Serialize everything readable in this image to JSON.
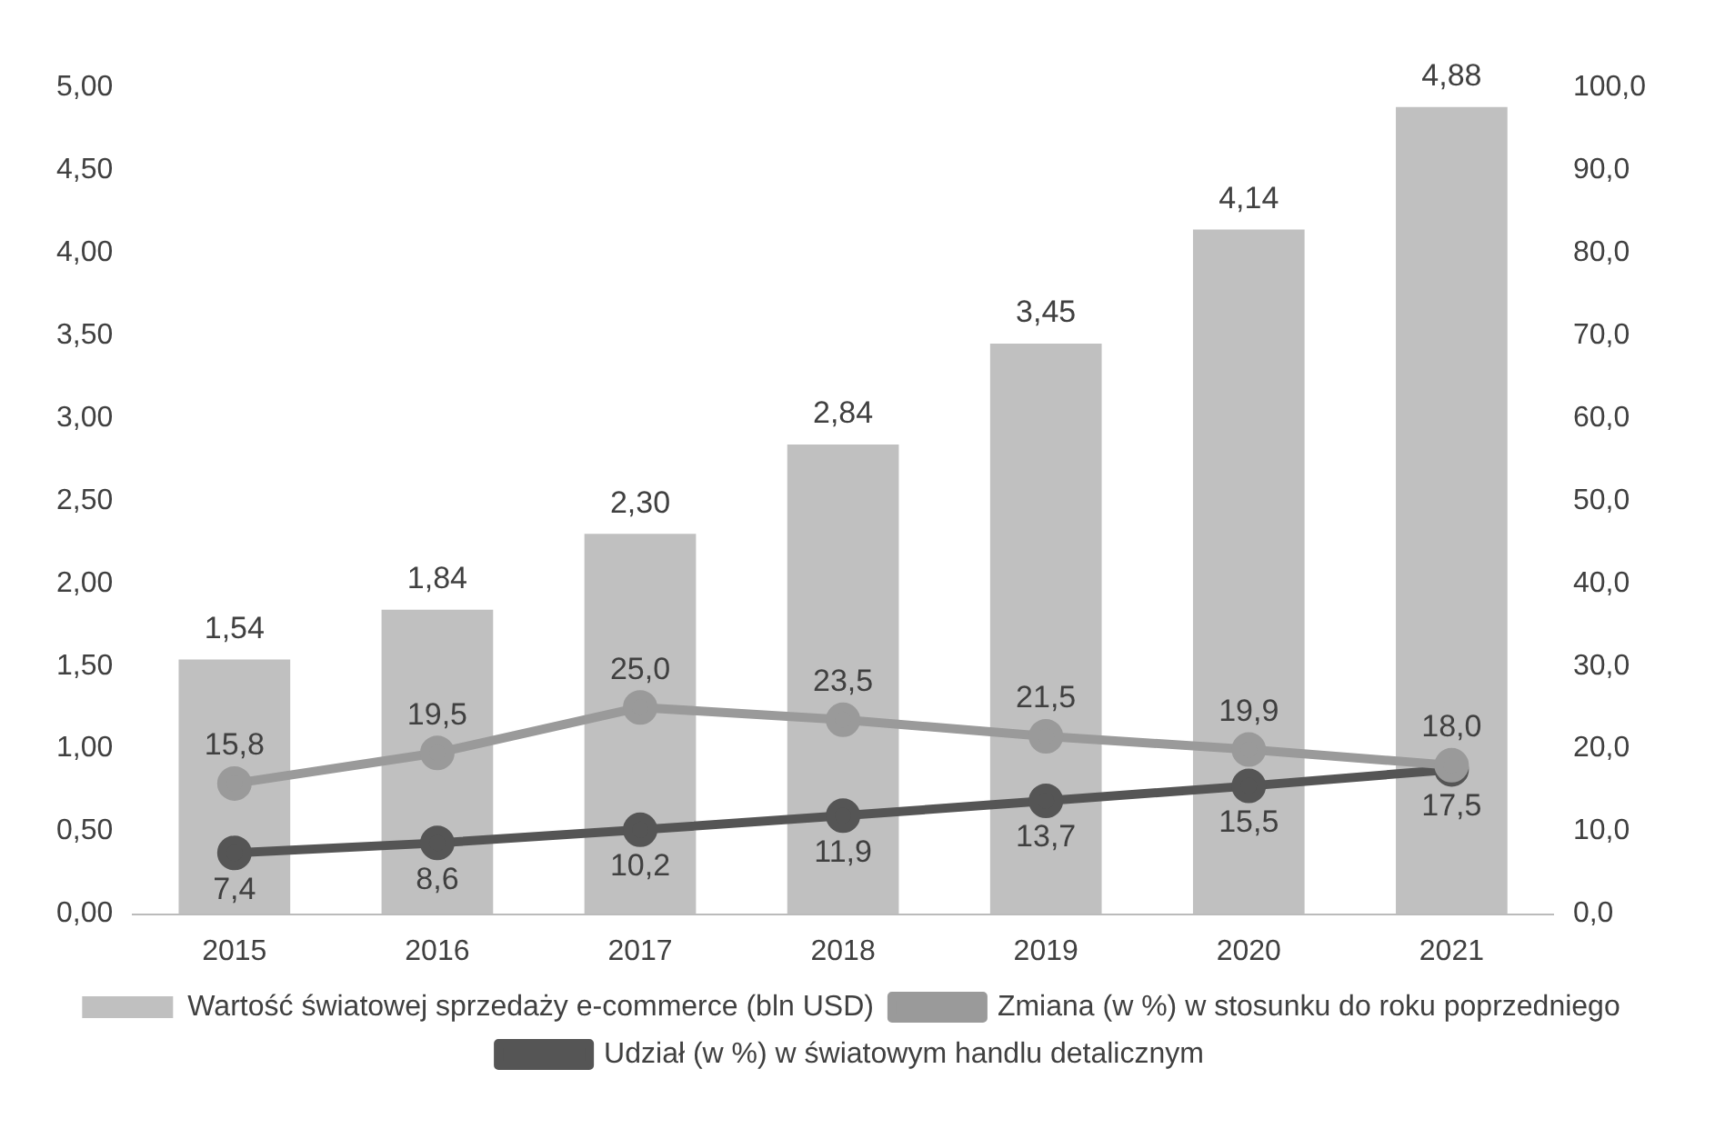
{
  "chart_data": {
    "type": "bar",
    "categories": [
      "2015",
      "2016",
      "2017",
      "2018",
      "2019",
      "2020",
      "2021"
    ],
    "series": [
      {
        "name": "Wartość światowej sprzedaży e-commerce (bln USD)",
        "color": "#c0c0c0",
        "values": [
          1.54,
          1.84,
          2.3,
          2.84,
          3.45,
          4.14,
          4.88
        ],
        "value_labels": [
          "1,54",
          "1,84",
          "2,30",
          "2,84",
          "3,45",
          "4,14",
          "4,88"
        ]
      },
      {
        "type": "line",
        "axis": "y2",
        "name": "Zmiana (w %) w stosunku do roku poprzedniego",
        "color": "#9a9a9a",
        "values": [
          15.8,
          19.5,
          25.0,
          23.5,
          21.5,
          19.9,
          18.0
        ],
        "value_labels": [
          "15,8",
          "19,5",
          "25,0",
          "23,5",
          "21,5",
          "19,9",
          "18,0"
        ]
      },
      {
        "type": "line",
        "axis": "y2",
        "name": "Udział (w %) w światowym handlu detalicznym",
        "color": "#555555",
        "values": [
          7.4,
          8.6,
          10.2,
          11.9,
          13.7,
          15.5,
          17.5
        ],
        "value_labels": [
          "7,4",
          "8,6",
          "10,2",
          "11,9",
          "13,7",
          "15,5",
          "17,5"
        ]
      }
    ],
    "ylim": [
      0,
      5
    ],
    "yticks": [
      {
        "value": 0,
        "label": "0,00"
      },
      {
        "value": 0.5,
        "label": "0,50"
      },
      {
        "value": 1,
        "label": "1,00"
      },
      {
        "value": 1.5,
        "label": "1,50"
      },
      {
        "value": 2,
        "label": "2,00"
      },
      {
        "value": 2.5,
        "label": "2,50"
      },
      {
        "value": 3,
        "label": "3,00"
      },
      {
        "value": 3.5,
        "label": "3,50"
      },
      {
        "value": 4,
        "label": "4,00"
      },
      {
        "value": 4.5,
        "label": "4,50"
      },
      {
        "value": 5,
        "label": "5,00"
      }
    ],
    "y2lim": [
      0,
      100
    ],
    "y2ticks": [
      {
        "value": 0,
        "label": "0,0"
      },
      {
        "value": 10,
        "label": "10,0"
      },
      {
        "value": 20,
        "label": "20,0"
      },
      {
        "value": 30,
        "label": "30,0"
      },
      {
        "value": 40,
        "label": "40,0"
      },
      {
        "value": 50,
        "label": "50,0"
      },
      {
        "value": 60,
        "label": "60,0"
      },
      {
        "value": 70,
        "label": "70,0"
      },
      {
        "value": 80,
        "label": "80,0"
      },
      {
        "value": 90,
        "label": "90,0"
      },
      {
        "value": 100,
        "label": "100,0"
      }
    ],
    "grid": false,
    "legend": "bottom",
    "marker": "circle",
    "line_style": "solid"
  }
}
